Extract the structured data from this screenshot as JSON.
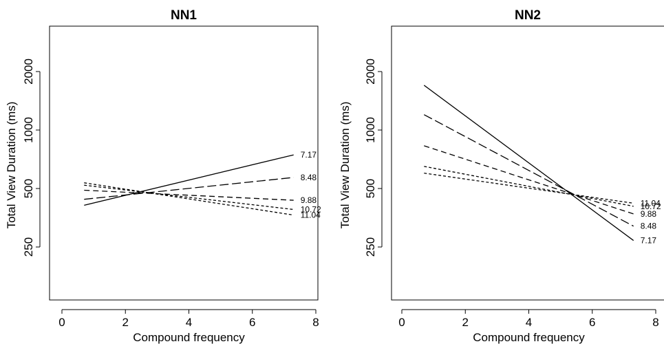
{
  "chart_data": [
    {
      "type": "line",
      "title": "NN1",
      "xlabel": "Compound frequency",
      "ylabel": "Total View Duration (ms)",
      "xlim": [
        0,
        8
      ],
      "ylim": [
        125,
        4000
      ],
      "yscale": "log",
      "xticks": [
        "0",
        "2",
        "4",
        "6",
        "8"
      ],
      "yticks": [
        250,
        500,
        1000,
        2000
      ],
      "ytick_labels": [
        "250",
        "500",
        "1000",
        "2000"
      ],
      "grid": false,
      "series": [
        {
          "name": "7.17",
          "dash": "solid",
          "x": [
            0.7,
            7.3
          ],
          "y": [
            410,
            745
          ]
        },
        {
          "name": "8.48",
          "dash": "long",
          "x": [
            0.7,
            7.3
          ],
          "y": [
            440,
            570
          ]
        },
        {
          "name": "9.88",
          "dash": "medium",
          "x": [
            0.7,
            7.3
          ],
          "y": [
            490,
            435
          ]
        },
        {
          "name": "10.72",
          "dash": "short",
          "x": [
            0.7,
            7.3
          ],
          "y": [
            520,
            390
          ]
        },
        {
          "name": "11.04",
          "dash": "short",
          "x": [
            0.7,
            7.3
          ],
          "y": [
            535,
            365
          ]
        }
      ]
    },
    {
      "type": "line",
      "title": "NN2",
      "xlabel": "Compound frequency",
      "ylabel": "Total View Duration (ms)",
      "xlim": [
        0,
        8
      ],
      "ylim": [
        125,
        4000
      ],
      "yscale": "log",
      "xticks": [
        "0",
        "2",
        "4",
        "6",
        "8"
      ],
      "yticks": [
        250,
        500,
        1000,
        2000
      ],
      "ytick_labels": [
        "250",
        "500",
        "1000",
        "2000"
      ],
      "grid": false,
      "series": [
        {
          "name": "7.17",
          "dash": "solid",
          "x": [
            0.7,
            7.3
          ],
          "y": [
            1700,
            270
          ]
        },
        {
          "name": "8.48",
          "dash": "long",
          "x": [
            0.7,
            7.3
          ],
          "y": [
            1200,
            320
          ]
        },
        {
          "name": "9.88",
          "dash": "medium",
          "x": [
            0.7,
            7.3
          ],
          "y": [
            830,
            370
          ]
        },
        {
          "name": "10.72",
          "dash": "short",
          "x": [
            0.7,
            7.3
          ],
          "y": [
            650,
            405
          ]
        },
        {
          "name": "11.04",
          "dash": "short",
          "x": [
            0.7,
            7.3
          ],
          "y": [
            600,
            420
          ]
        }
      ]
    }
  ]
}
